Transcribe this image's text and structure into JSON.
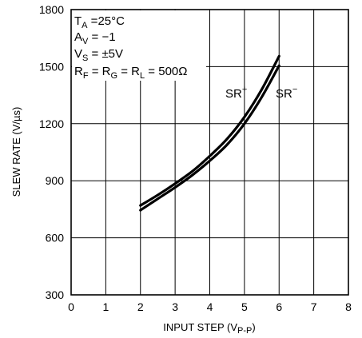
{
  "chart_data": {
    "type": "line",
    "xlabel": "INPUT STEP (V",
    "xlabel_sub": "P-P",
    "xlabel_end": ")",
    "ylabel": "SLEW RATE (V/µs)",
    "xlim": [
      0,
      8
    ],
    "ylim": [
      300,
      1800
    ],
    "x_ticks": [
      "0",
      "1",
      "2",
      "3",
      "4",
      "5",
      "6",
      "7",
      "8"
    ],
    "y_ticks": [
      "300",
      "600",
      "900",
      "1200",
      "1500",
      "1800"
    ],
    "grid": true,
    "conditions": {
      "ta": {
        "main": "T",
        "sub": "A",
        "rest": " =25°C"
      },
      "av": {
        "main": "A",
        "sub": "V",
        "rest": " = −1"
      },
      "vs": {
        "main": "V",
        "sub": "S",
        "rest": " = ±5V"
      },
      "r": {
        "r1": "R",
        "s1": "F",
        "m1": " = R",
        "s2": "G",
        "m2": " = R",
        "s3": "L",
        "rest": " = 500Ω"
      }
    },
    "series": [
      {
        "name": "SR",
        "superscript": "+",
        "x": [
          2,
          2.5,
          3,
          3.5,
          4,
          4.5,
          5,
          5.5,
          6
        ],
        "y": [
          770,
          825,
          885,
          950,
          1030,
          1120,
          1235,
          1380,
          1555
        ]
      },
      {
        "name": "SR",
        "superscript": "−",
        "x": [
          2,
          2.5,
          3,
          3.5,
          4,
          4.5,
          5,
          5.5,
          6
        ],
        "y": [
          745,
          805,
          865,
          930,
          1005,
          1090,
          1200,
          1340,
          1505
        ]
      }
    ]
  }
}
